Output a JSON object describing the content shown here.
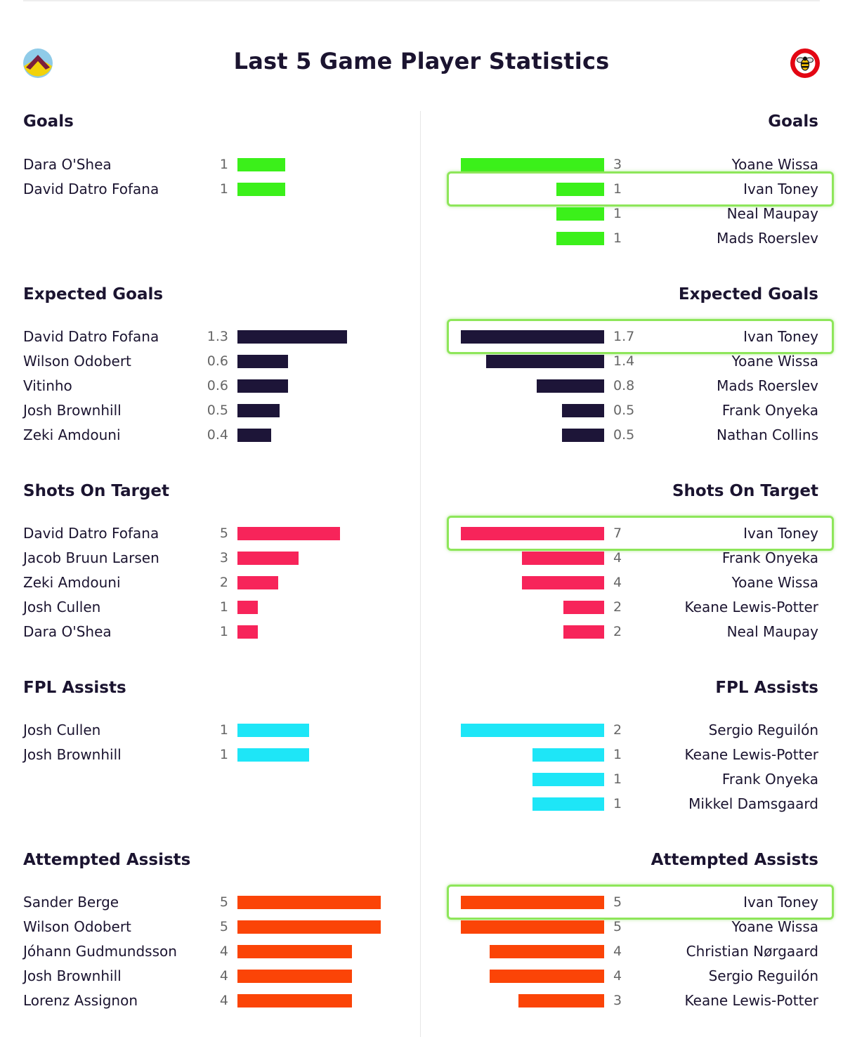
{
  "header": {
    "title": "Last 5 Game Player Statistics",
    "home_crest_icon": "aston-villa-crest-icon",
    "away_crest_icon": "brentford-bee-crest-icon"
  },
  "chart_data": {
    "type": "bar",
    "sections": [
      {
        "title": "Goals",
        "color": "#3bf01a",
        "home": [
          {
            "player": "Dara O'Shea",
            "value": 1,
            "label": "1"
          },
          {
            "player": "David Datro Fofana",
            "value": 1,
            "label": "1"
          }
        ],
        "away": [
          {
            "player": "Yoane Wissa",
            "value": 3,
            "label": "3"
          },
          {
            "player": "Ivan Toney",
            "value": 1,
            "label": "1",
            "highlighted": true
          },
          {
            "player": "Neal Maupay",
            "value": 1,
            "label": "1"
          },
          {
            "player": "Mads Roerslev",
            "value": 1,
            "label": "1"
          }
        ]
      },
      {
        "title": "Expected Goals",
        "color": "#1d1538",
        "home": [
          {
            "player": "David Datro Fofana",
            "value": 1.3,
            "label": "1.3"
          },
          {
            "player": "Wilson Odobert",
            "value": 0.6,
            "label": "0.6"
          },
          {
            "player": "Vitinho",
            "value": 0.6,
            "label": "0.6"
          },
          {
            "player": "Josh Brownhill",
            "value": 0.5,
            "label": "0.5"
          },
          {
            "player": "Zeki Amdouni",
            "value": 0.4,
            "label": "0.4"
          }
        ],
        "away": [
          {
            "player": "Ivan Toney",
            "value": 1.7,
            "label": "1.7",
            "highlighted": true
          },
          {
            "player": "Yoane Wissa",
            "value": 1.4,
            "label": "1.4"
          },
          {
            "player": "Mads Roerslev",
            "value": 0.8,
            "label": "0.8"
          },
          {
            "player": "Frank Onyeka",
            "value": 0.5,
            "label": "0.5"
          },
          {
            "player": "Nathan Collins",
            "value": 0.5,
            "label": "0.5"
          }
        ]
      },
      {
        "title": "Shots On Target",
        "color": "#f7245a",
        "home": [
          {
            "player": "David Datro Fofana",
            "value": 5,
            "label": "5"
          },
          {
            "player": "Jacob Bruun Larsen",
            "value": 3,
            "label": "3"
          },
          {
            "player": "Zeki Amdouni",
            "value": 2,
            "label": "2"
          },
          {
            "player": "Josh Cullen",
            "value": 1,
            "label": "1"
          },
          {
            "player": "Dara O'Shea",
            "value": 1,
            "label": "1"
          }
        ],
        "away": [
          {
            "player": "Ivan Toney",
            "value": 7,
            "label": "7",
            "highlighted": true
          },
          {
            "player": "Frank Onyeka",
            "value": 4,
            "label": "4"
          },
          {
            "player": "Yoane Wissa",
            "value": 4,
            "label": "4"
          },
          {
            "player": "Keane Lewis-Potter",
            "value": 2,
            "label": "2"
          },
          {
            "player": "Neal Maupay",
            "value": 2,
            "label": "2"
          }
        ]
      },
      {
        "title": "FPL Assists",
        "color": "#1ee6f7",
        "home": [
          {
            "player": "Josh Cullen",
            "value": 1,
            "label": "1"
          },
          {
            "player": "Josh Brownhill",
            "value": 1,
            "label": "1"
          }
        ],
        "away": [
          {
            "player": "Sergio Reguilón",
            "value": 2,
            "label": "2"
          },
          {
            "player": "Keane Lewis-Potter",
            "value": 1,
            "label": "1"
          },
          {
            "player": "Frank Onyeka",
            "value": 1,
            "label": "1"
          },
          {
            "player": "Mikkel Damsgaard",
            "value": 1,
            "label": "1"
          }
        ]
      },
      {
        "title": "Attempted Assists",
        "color": "#fb4407",
        "home": [
          {
            "player": "Sander Berge",
            "value": 5,
            "label": "5"
          },
          {
            "player": "Wilson Odobert",
            "value": 5,
            "label": "5"
          },
          {
            "player": "Jóhann Gudmundsson",
            "value": 4,
            "label": "4"
          },
          {
            "player": "Josh Brownhill",
            "value": 4,
            "label": "4"
          },
          {
            "player": "Lorenz Assignon",
            "value": 4,
            "label": "4"
          }
        ],
        "away": [
          {
            "player": "Ivan Toney",
            "value": 5,
            "label": "5",
            "highlighted": true
          },
          {
            "player": "Yoane Wissa",
            "value": 5,
            "label": "5"
          },
          {
            "player": "Christian Nørgaard",
            "value": 4,
            "label": "4"
          },
          {
            "player": "Sergio Reguilón",
            "value": 4,
            "label": "4"
          },
          {
            "player": "Keane Lewis-Potter",
            "value": 3,
            "label": "3"
          }
        ]
      }
    ]
  }
}
